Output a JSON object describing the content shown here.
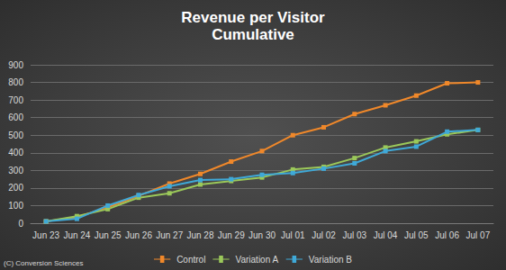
{
  "chart_data": {
    "type": "line",
    "title": "Revenue per Visitor",
    "subtitle": "Cumulative",
    "annotation": "(C) Conversion Sciences",
    "categories": [
      "Jun 23",
      "Jun 24",
      "Jun 25",
      "Jun 26",
      "Jun 27",
      "Jun 28",
      "Jun 29",
      "Jun 30",
      "Jul 01",
      "Jul 02",
      "Jul 03",
      "Jul 04",
      "Jul 05",
      "Jul 06",
      "Jul 07"
    ],
    "series": [
      {
        "name": "Control",
        "color": "#f0882a",
        "values": [
          10,
          35,
          90,
          155,
          225,
          280,
          350,
          410,
          500,
          545,
          620,
          670,
          725,
          795,
          800
        ]
      },
      {
        "name": "Variation A",
        "color": "#9bc85a",
        "values": [
          10,
          40,
          80,
          145,
          170,
          220,
          240,
          260,
          305,
          320,
          370,
          430,
          465,
          505,
          530
        ]
      },
      {
        "name": "Variation B",
        "color": "#3fa9d8",
        "values": [
          10,
          25,
          100,
          160,
          210,
          245,
          250,
          275,
          285,
          310,
          340,
          410,
          435,
          520,
          530
        ]
      }
    ],
    "ylim": [
      0,
      900
    ],
    "yticks": [
      0,
      100,
      200,
      300,
      400,
      500,
      600,
      700,
      800,
      900
    ],
    "grid": true,
    "legend": "bottom",
    "marker": "square"
  }
}
